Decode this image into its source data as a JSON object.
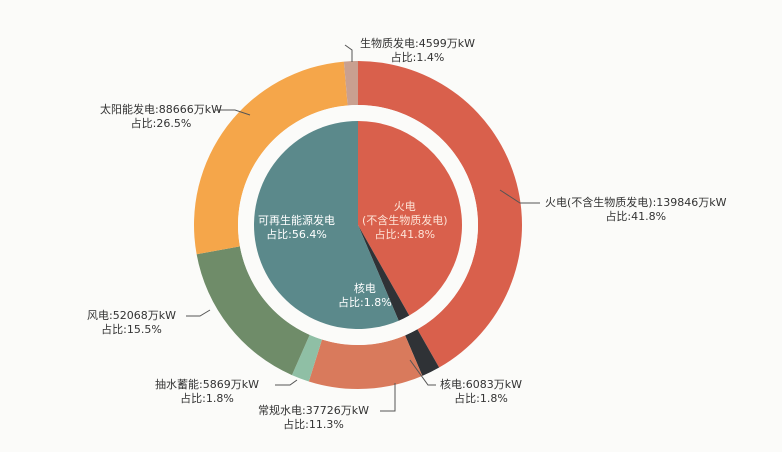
{
  "chart_data": {
    "type": "pie",
    "unit": "万kW",
    "outer_ring": [
      {
        "name": "火电(不含生物质发电)",
        "value": 139846,
        "share": "41.8%",
        "color": "#d9604c"
      },
      {
        "name": "核电",
        "value": 6083,
        "share": "1.8%",
        "color": "#2f3236"
      },
      {
        "name": "常规水电",
        "value": 37726,
        "share": "11.3%",
        "color": "#d97a5c"
      },
      {
        "name": "抽水蓄能",
        "value": 5869,
        "share": "1.8%",
        "color": "#8fbfa5"
      },
      {
        "name": "风电",
        "value": 52068,
        "share": "15.5%",
        "color": "#6f8c69"
      },
      {
        "name": "太阳能发电",
        "value": 88666,
        "share": "26.5%",
        "color": "#f5a64a"
      },
      {
        "name": "生物质发电",
        "value": 4599,
        "share": "1.4%",
        "color": "#c9a090"
      }
    ],
    "inner_pie": [
      {
        "name": "火电",
        "sub": "(不含生物质发电)",
        "pct": 41.8,
        "share": "41.8%",
        "color": "#d9604c"
      },
      {
        "name": "核电",
        "pct": 1.8,
        "share": "1.8%",
        "color": "#2f3236"
      },
      {
        "name": "可再生能源发电",
        "pct": 56.4,
        "share": "56.4%",
        "color": "#5b898b"
      }
    ]
  },
  "labels": {
    "share_prefix": "占比:",
    "outer": [
      "火电(不含生物质发电):139846万kW",
      "核电:6083万kW",
      "常规水电:37726万kW",
      "抽水蓄能:5869万kW",
      "风电:52068万kW",
      "太阳能发电:88666万kW",
      "生物质发电:4599万kW"
    ],
    "outer_share": [
      "占比:41.8%",
      "占比:1.8%",
      "占比:11.3%",
      "占比:1.8%",
      "占比:15.5%",
      "占比:26.5%",
      "占比:1.4%"
    ],
    "inner": {
      "fire": "火电",
      "fire_sub": "(不含生物质发电)",
      "fire_share": "占比:41.8%",
      "nuclear": "核电",
      "nuclear_share": "占比:1.8%",
      "renew": "可再生能源发电",
      "renew_share": "占比:56.4%"
    }
  }
}
